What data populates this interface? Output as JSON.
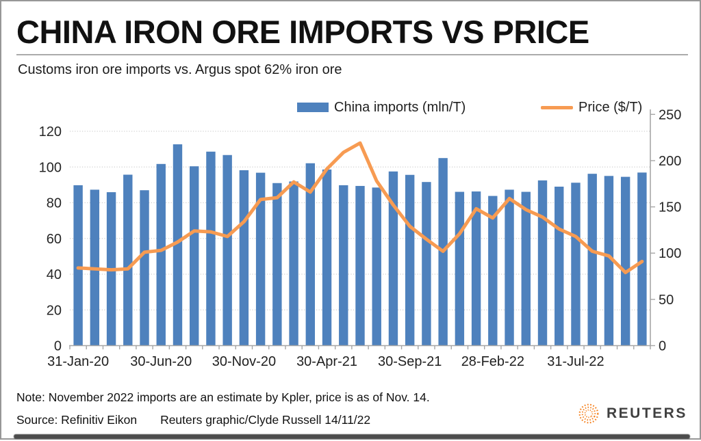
{
  "header": {
    "title": "CHINA IRON ORE IMPORTS VS PRICE",
    "subtitle": "Customs iron ore imports vs. Argus spot 62% iron ore"
  },
  "legend": [
    {
      "label": "China imports (mln/T)",
      "color": "#4e81bd",
      "type": "bar"
    },
    {
      "label": "Price ($/T)",
      "color": "#f79b52",
      "type": "line"
    }
  ],
  "footer": {
    "note": "Note: November 2022 imports are an estimate by Kpler, price is as of Nov. 14.",
    "source": "Source: Refinitiv Eikon",
    "credit": "Reuters graphic/Clyde Russell 14/11/22",
    "brand": "REUTERS",
    "brand_color": "#f58220"
  },
  "colors": {
    "bar_blue": "#4e81bd",
    "line_orange": "#f79b52",
    "gridline": "#cfcfcf",
    "axis": "#a6a6a6",
    "tick_text": "#262626"
  },
  "chart_data": {
    "type": "bar+line combo",
    "title": "China iron ore imports vs Argus spot 62% iron ore price",
    "grid": "horizontal dotted, left scale",
    "legend_position": "top",
    "categories": [
      "Jan-20",
      "Feb-20",
      "Mar-20",
      "Apr-20",
      "May-20",
      "Jun-20",
      "Jul-20",
      "Aug-20",
      "Sep-20",
      "Oct-20",
      "Nov-20",
      "Dec-20",
      "Jan-21",
      "Feb-21",
      "Mar-21",
      "Apr-21",
      "May-21",
      "Jun-21",
      "Jul-21",
      "Aug-21",
      "Sep-21",
      "Oct-21",
      "Nov-21",
      "Dec-21",
      "Jan-22",
      "Feb-22",
      "Mar-22",
      "Apr-22",
      "May-22",
      "Jun-22",
      "Jul-22",
      "Aug-22",
      "Sep-22",
      "Oct-22",
      "Nov-22"
    ],
    "series": [
      {
        "name": "China imports (mln/T)",
        "type": "bar",
        "axis": "left",
        "color": "#4e81bd",
        "values": [
          89.8,
          87.3,
          85.9,
          95.7,
          87.0,
          101.7,
          112.7,
          100.4,
          108.6,
          106.7,
          98.2,
          96.8,
          91.0,
          91.9,
          102.1,
          98.6,
          89.8,
          89.4,
          88.5,
          97.5,
          95.6,
          91.6,
          105.0,
          86.1,
          86.3,
          83.8,
          87.3,
          86.1,
          92.5,
          89.0,
          91.2,
          96.2,
          95.0,
          94.5,
          96.9
        ]
      },
      {
        "name": "Price ($/T)",
        "type": "line",
        "axis": "right",
        "color": "#f79b52",
        "values": [
          84,
          83,
          82,
          83,
          101,
          103,
          112,
          124,
          123,
          118,
          134,
          158,
          160,
          177,
          166,
          191,
          209,
          219,
          178,
          152,
          129,
          115,
          102,
          121,
          148,
          138,
          159,
          147,
          139,
          126,
          118,
          102,
          97,
          79,
          91
        ]
      }
    ],
    "left_axis": {
      "label": "imports (mln/T)",
      "ticks": [
        0,
        20,
        40,
        60,
        80,
        100,
        120
      ],
      "range": [
        0,
        120
      ]
    },
    "right_axis": {
      "label": "price ($/T)",
      "ticks": [
        0,
        50,
        100,
        150,
        200,
        250
      ],
      "range": [
        0,
        250
      ]
    },
    "x_tick_labels": [
      {
        "index": 0,
        "label": "31-Jan-20"
      },
      {
        "index": 5,
        "label": "30-Jun-20"
      },
      {
        "index": 10,
        "label": "30-Nov-20"
      },
      {
        "index": 15,
        "label": "30-Apr-21"
      },
      {
        "index": 20,
        "label": "30-Sep-21"
      },
      {
        "index": 25,
        "label": "28-Feb-22"
      },
      {
        "index": 30,
        "label": "31-Jul-22"
      }
    ]
  }
}
